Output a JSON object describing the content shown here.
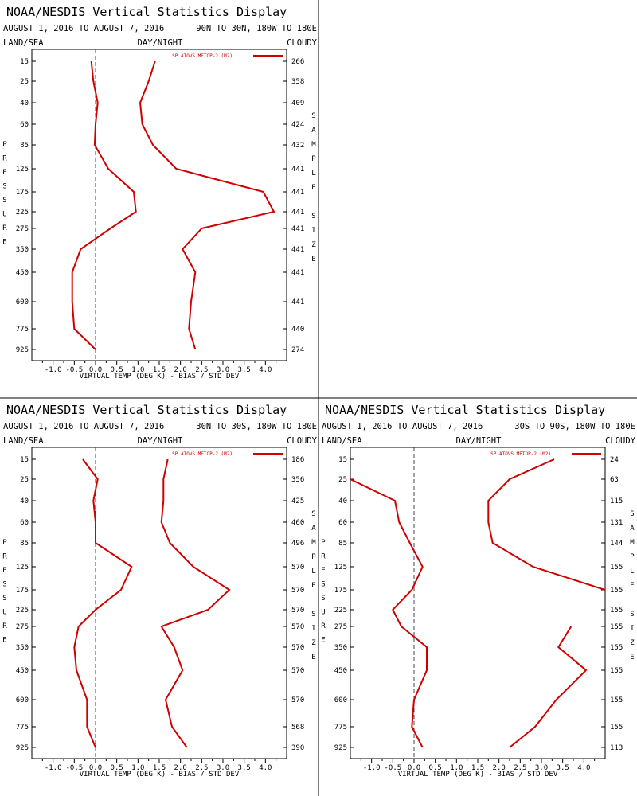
{
  "colors": {
    "series": "#d00000",
    "axis": "#000000",
    "zero_line": "#445566",
    "background": "#ffffff"
  },
  "chart_data": [
    {
      "type": "line",
      "title": "NOAA/NESDIS Vertical Statistics Display",
      "date_range": "AUGUST 1, 2016 TO AUGUST 7, 2016",
      "region": "90N TO 30N, 180W TO 180E",
      "surface": "LAND/SEA",
      "time_of_day": "DAY/NIGHT",
      "sky": "CLOUDY",
      "legend": "SP ATOVS METOP-2 (M2)",
      "xlabel": "VIRTUAL TEMP (DEG K) - BIAS / STD DEV",
      "ylabel": "PRESSURE",
      "y2label": "SAMPLE SIZE",
      "xlim": [
        -1.5,
        4.5
      ],
      "x_ticks": [
        "-1.0",
        "-0.5",
        "0.0",
        "0.5",
        "1.0",
        "1.5",
        "2.0",
        "2.5",
        "3.0",
        "3.5",
        "4.0"
      ],
      "pressure_levels": [
        "15",
        "25",
        "40",
        "60",
        "85",
        "125",
        "175",
        "225",
        "275",
        "350",
        "450",
        "600",
        "775",
        "925"
      ],
      "sample_size": [
        "266",
        "358",
        "409",
        "424",
        "432",
        "441",
        "441",
        "441",
        "441",
        "441",
        "441",
        "441",
        "440",
        "274"
      ],
      "series": [
        {
          "role": "bias",
          "values": [
            -0.1,
            -0.05,
            0.05,
            0.0,
            -0.02,
            0.3,
            0.9,
            0.95,
            0.35,
            -0.35,
            -0.55,
            -0.55,
            -0.5,
            0.0
          ]
        },
        {
          "role": "std_dev",
          "values": [
            1.4,
            1.25,
            1.05,
            1.1,
            1.35,
            1.9,
            3.95,
            4.2,
            2.5,
            2.05,
            2.35,
            2.25,
            2.2,
            2.35
          ]
        }
      ]
    },
    {
      "type": "line",
      "title": "NOAA/NESDIS Vertical Statistics Display",
      "date_range": "AUGUST 1, 2016 TO AUGUST 7, 2016",
      "region": "30N TO 30S, 180W TO 180E",
      "surface": "LAND/SEA",
      "time_of_day": "DAY/NIGHT",
      "sky": "CLOUDY",
      "legend": "SP ATOVS METOP-2 (M2)",
      "xlabel": "VIRTUAL TEMP (DEG K) - BIAS / STD DEV",
      "ylabel": "PRESSURE",
      "y2label": "SAMPLE SIZE",
      "xlim": [
        -1.5,
        4.5
      ],
      "x_ticks": [
        "-1.0",
        "-0.5",
        "0.0",
        "0.5",
        "1.0",
        "1.5",
        "2.0",
        "2.5",
        "3.0",
        "3.5",
        "4.0"
      ],
      "pressure_levels": [
        "15",
        "25",
        "40",
        "60",
        "85",
        "125",
        "175",
        "225",
        "275",
        "350",
        "450",
        "600",
        "775",
        "925"
      ],
      "sample_size": [
        "186",
        "356",
        "425",
        "460",
        "496",
        "570",
        "570",
        "570",
        "570",
        "570",
        "570",
        "570",
        "568",
        "390"
      ],
      "series": [
        {
          "role": "bias",
          "values": [
            -0.3,
            0.05,
            -0.05,
            0.0,
            0.0,
            0.85,
            0.6,
            0.0,
            -0.4,
            -0.5,
            -0.45,
            -0.2,
            -0.2,
            0.0
          ]
        },
        {
          "role": "std_dev",
          "values": [
            1.7,
            1.6,
            1.6,
            1.55,
            1.75,
            2.3,
            3.15,
            2.65,
            1.55,
            1.85,
            2.05,
            1.65,
            1.8,
            2.15
          ]
        }
      ]
    },
    {
      "type": "line",
      "title": "NOAA/NESDIS Vertical Statistics Display",
      "date_range": "AUGUST 1, 2016 TO AUGUST 7, 2016",
      "region": "30S TO 90S, 180W TO 180E",
      "surface": "LAND/SEA",
      "time_of_day": "DAY/NIGHT",
      "sky": "CLOUDY",
      "legend": "SP ATOVS METOP-2 (M2)",
      "xlabel": "VIRTUAL TEMP (DEG K) - BIAS / STD DEV",
      "ylabel": "PRESSURE",
      "y2label": "SAMPLE SIZE",
      "xlim": [
        -1.5,
        4.5
      ],
      "x_ticks": [
        "-1.0",
        "-0.5",
        "0.0",
        "0.5",
        "1.0",
        "1.5",
        "2.0",
        "2.5",
        "3.0",
        "3.5",
        "4.0"
      ],
      "pressure_levels": [
        "15",
        "25",
        "40",
        "60",
        "85",
        "125",
        "175",
        "225",
        "275",
        "350",
        "450",
        "600",
        "775",
        "925"
      ],
      "sample_size": [
        "24",
        "63",
        "115",
        "131",
        "144",
        "155",
        "155",
        "155",
        "155",
        "155",
        "155",
        "155",
        "155",
        "113"
      ],
      "series": [
        {
          "role": "bias",
          "values": [
            null,
            -1.5,
            -0.45,
            -0.35,
            -0.1,
            0.2,
            -0.05,
            -0.5,
            -0.3,
            0.3,
            0.3,
            0.0,
            -0.05,
            0.2
          ]
        },
        {
          "role": "std_dev",
          "values": [
            3.3,
            2.25,
            1.75,
            1.75,
            1.85,
            2.8,
            4.5,
            null,
            3.7,
            3.4,
            4.05,
            3.35,
            2.85,
            2.25
          ]
        }
      ]
    }
  ]
}
